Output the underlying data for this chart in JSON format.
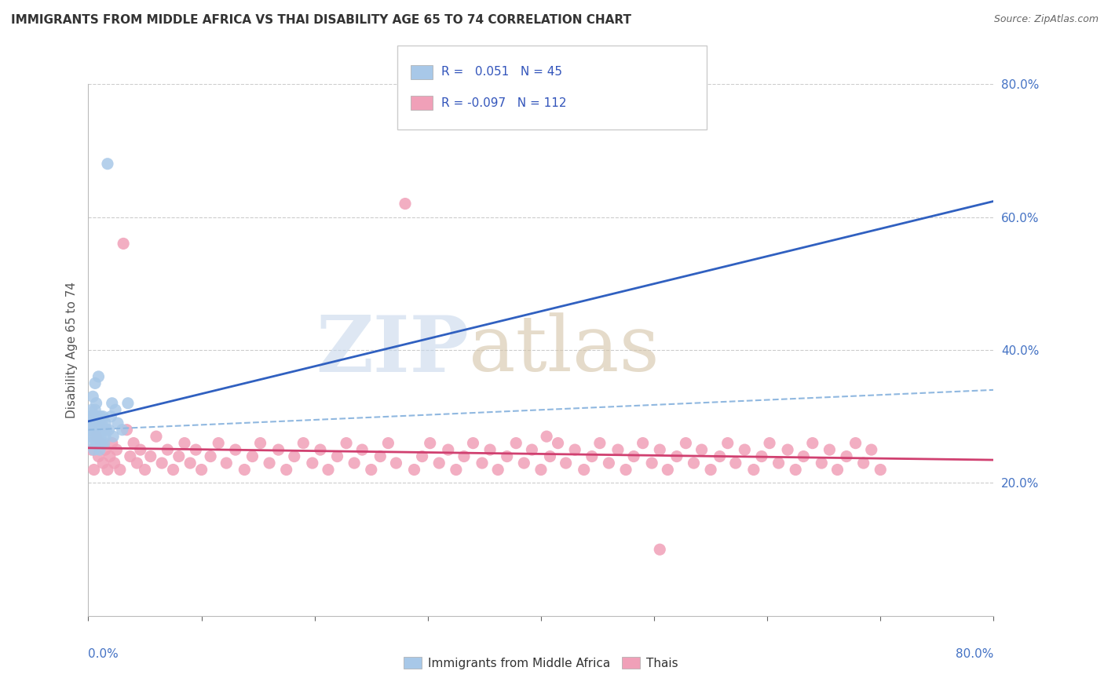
{
  "title": "IMMIGRANTS FROM MIDDLE AFRICA VS THAI DISABILITY AGE 65 TO 74 CORRELATION CHART",
  "source": "Source: ZipAtlas.com",
  "ylabel": "Disability Age 65 to 74",
  "legend_label1": "Immigrants from Middle Africa",
  "legend_label2": "Thais",
  "r1": 0.051,
  "n1": 45,
  "r2": -0.097,
  "n2": 112,
  "color1": "#a8c8e8",
  "color2": "#f0a0b8",
  "line1_color": "#3060c0",
  "line2_color": "#d04070",
  "line1_dash_color": "#90b8e0",
  "xlim": [
    0.0,
    0.8
  ],
  "ylim": [
    0.0,
    0.8
  ],
  "yticks": [
    0.2,
    0.4,
    0.6,
    0.8
  ],
  "xticks": [
    0.0,
    0.1,
    0.2,
    0.3,
    0.4,
    0.5,
    0.6,
    0.7,
    0.8
  ],
  "blue_scatter_x": [
    0.001,
    0.002,
    0.002,
    0.003,
    0.003,
    0.003,
    0.004,
    0.004,
    0.004,
    0.005,
    0.005,
    0.005,
    0.006,
    0.006,
    0.006,
    0.007,
    0.007,
    0.007,
    0.008,
    0.008,
    0.008,
    0.009,
    0.009,
    0.01,
    0.01,
    0.01,
    0.011,
    0.011,
    0.012,
    0.012,
    0.013,
    0.013,
    0.014,
    0.015,
    0.015,
    0.016,
    0.017,
    0.018,
    0.02,
    0.021,
    0.022,
    0.024,
    0.026,
    0.03,
    0.035
  ],
  "blue_scatter_y": [
    0.29,
    0.3,
    0.27,
    0.31,
    0.28,
    0.26,
    0.29,
    0.28,
    0.33,
    0.3,
    0.27,
    0.25,
    0.31,
    0.28,
    0.35,
    0.29,
    0.26,
    0.32,
    0.28,
    0.3,
    0.26,
    0.36,
    0.27,
    0.29,
    0.28,
    0.25,
    0.3,
    0.27,
    0.29,
    0.26,
    0.3,
    0.28,
    0.26,
    0.29,
    0.27,
    0.28,
    0.68,
    0.28,
    0.3,
    0.32,
    0.27,
    0.31,
    0.29,
    0.28,
    0.32
  ],
  "pink_scatter_x": [
    0.003,
    0.005,
    0.007,
    0.009,
    0.011,
    0.013,
    0.015,
    0.017,
    0.019,
    0.021,
    0.023,
    0.025,
    0.028,
    0.031,
    0.034,
    0.037,
    0.04,
    0.043,
    0.046,
    0.05,
    0.055,
    0.06,
    0.065,
    0.07,
    0.075,
    0.08,
    0.085,
    0.09,
    0.095,
    0.1,
    0.108,
    0.115,
    0.122,
    0.13,
    0.138,
    0.145,
    0.152,
    0.16,
    0.168,
    0.175,
    0.182,
    0.19,
    0.198,
    0.205,
    0.212,
    0.22,
    0.228,
    0.235,
    0.242,
    0.25,
    0.258,
    0.265,
    0.272,
    0.28,
    0.288,
    0.295,
    0.302,
    0.31,
    0.318,
    0.325,
    0.332,
    0.34,
    0.348,
    0.355,
    0.362,
    0.37,
    0.378,
    0.385,
    0.392,
    0.4,
    0.408,
    0.415,
    0.422,
    0.43,
    0.438,
    0.445,
    0.452,
    0.46,
    0.468,
    0.475,
    0.482,
    0.49,
    0.498,
    0.505,
    0.512,
    0.52,
    0.528,
    0.535,
    0.542,
    0.55,
    0.558,
    0.565,
    0.572,
    0.58,
    0.588,
    0.595,
    0.602,
    0.61,
    0.618,
    0.625,
    0.632,
    0.64,
    0.648,
    0.655,
    0.662,
    0.67,
    0.678,
    0.685,
    0.692,
    0.7,
    0.505,
    0.405
  ],
  "pink_scatter_y": [
    0.25,
    0.22,
    0.27,
    0.24,
    0.26,
    0.23,
    0.25,
    0.22,
    0.24,
    0.26,
    0.23,
    0.25,
    0.22,
    0.56,
    0.28,
    0.24,
    0.26,
    0.23,
    0.25,
    0.22,
    0.24,
    0.27,
    0.23,
    0.25,
    0.22,
    0.24,
    0.26,
    0.23,
    0.25,
    0.22,
    0.24,
    0.26,
    0.23,
    0.25,
    0.22,
    0.24,
    0.26,
    0.23,
    0.25,
    0.22,
    0.24,
    0.26,
    0.23,
    0.25,
    0.22,
    0.24,
    0.26,
    0.23,
    0.25,
    0.22,
    0.24,
    0.26,
    0.23,
    0.62,
    0.22,
    0.24,
    0.26,
    0.23,
    0.25,
    0.22,
    0.24,
    0.26,
    0.23,
    0.25,
    0.22,
    0.24,
    0.26,
    0.23,
    0.25,
    0.22,
    0.24,
    0.26,
    0.23,
    0.25,
    0.22,
    0.24,
    0.26,
    0.23,
    0.25,
    0.22,
    0.24,
    0.26,
    0.23,
    0.25,
    0.22,
    0.24,
    0.26,
    0.23,
    0.25,
    0.22,
    0.24,
    0.26,
    0.23,
    0.25,
    0.22,
    0.24,
    0.26,
    0.23,
    0.25,
    0.22,
    0.24,
    0.26,
    0.23,
    0.25,
    0.22,
    0.24,
    0.26,
    0.23,
    0.25,
    0.22,
    0.1,
    0.27
  ]
}
